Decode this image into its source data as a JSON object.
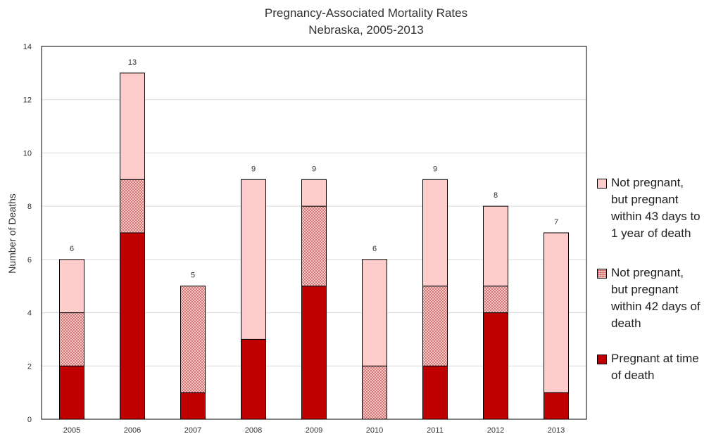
{
  "chart_data": {
    "type": "bar",
    "stacked": true,
    "title": "Pregnancy-Associated Mortality Rates",
    "subtitle": "Nebraska, 2005-2013",
    "xlabel": "",
    "ylabel": "Number of Deaths",
    "ylim": [
      0,
      14
    ],
    "yticks": [
      "0",
      "2",
      "4",
      "6",
      "8",
      "10",
      "12",
      "14"
    ],
    "grid": true,
    "legend_position": "right",
    "categories": [
      "2005",
      "2006",
      "2007",
      "2008",
      "2009",
      "2010",
      "2011",
      "2012",
      "2013"
    ],
    "series": [
      {
        "name": "Pregnant at time of death",
        "values": [
          2,
          7,
          1,
          3,
          5,
          0,
          2,
          4,
          1
        ],
        "color": "#c00000",
        "pattern": "solid"
      },
      {
        "name": "Not pregnant, but pregnant within 42 days of death",
        "values": [
          2,
          2,
          4,
          0,
          3,
          2,
          3,
          1,
          0
        ],
        "color": "#d98b8b",
        "pattern": "dotted"
      },
      {
        "name": "Not pregnant, but pregnant within 43 days to 1 year of death",
        "values": [
          2,
          4,
          0,
          6,
          1,
          4,
          4,
          3,
          6
        ],
        "color": "#ffcccc",
        "pattern": "solid"
      }
    ],
    "totals": [
      "6",
      "13",
      "5",
      "9",
      "9",
      "6",
      "9",
      "8",
      "7"
    ]
  },
  "legend": [
    {
      "name": "legend-item-43days",
      "lines": [
        "Not pregnant,",
        "but pregnant",
        "within 43 days to",
        "1 year of death"
      ],
      "series": 2
    },
    {
      "name": "legend-item-42days",
      "lines": [
        "Not pregnant,",
        "but pregnant",
        "within 42 days of",
        "death"
      ],
      "series": 1
    },
    {
      "name": "legend-item-pregnant",
      "lines": [
        "Pregnant at time",
        "of death"
      ],
      "series": 0
    }
  ]
}
